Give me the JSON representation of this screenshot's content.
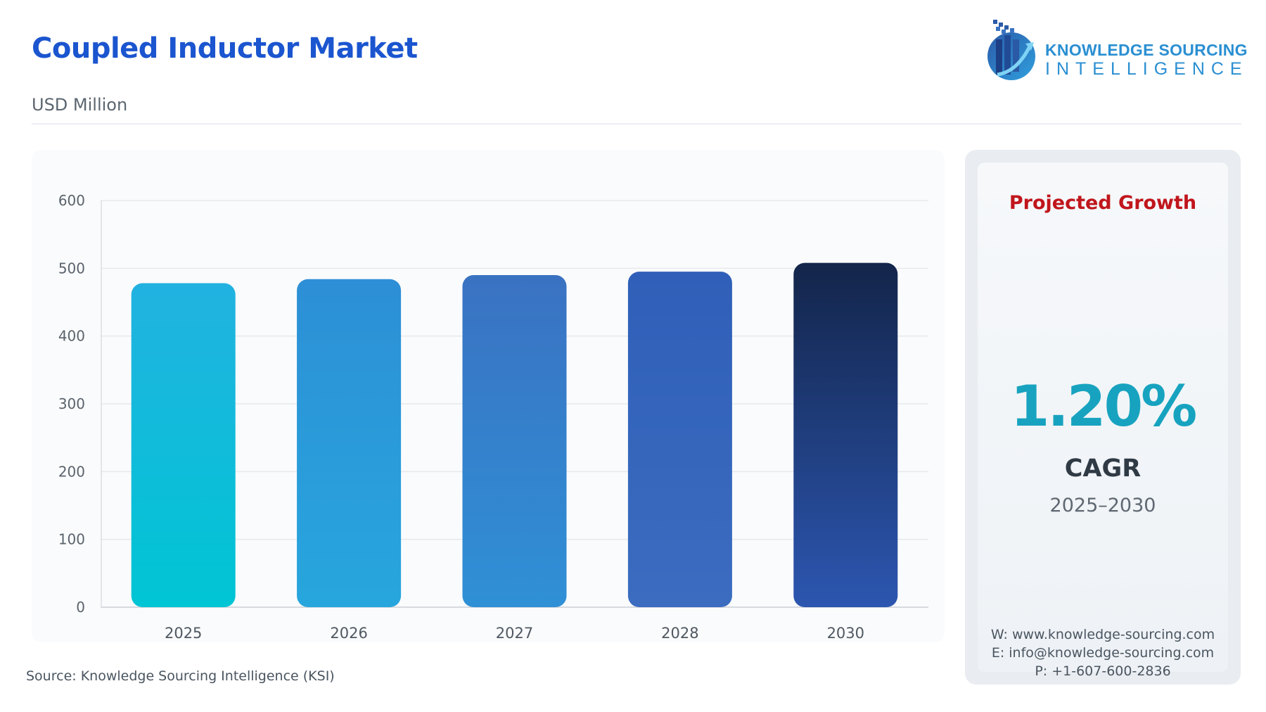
{
  "header": {
    "title": "Coupled Inductor Market",
    "subtitle": "USD Million"
  },
  "logo": {
    "line1": "KNOWLEDGE SOURCING",
    "line2": "INTELLIGENCE",
    "icon": "bar-chart-globe-logo-icon"
  },
  "chart_data": {
    "type": "bar",
    "categories": [
      "2025",
      "2026",
      "2027",
      "2028",
      "2030"
    ],
    "values": [
      478,
      484,
      490,
      495,
      508
    ],
    "ylim": [
      0,
      600
    ],
    "yticks": [
      0,
      100,
      200,
      300,
      400,
      500,
      600
    ],
    "grid": true,
    "legend": "none",
    "title": "",
    "xlabel": "",
    "ylabel": "",
    "colors": {
      "2025": [
        "#00c5d4",
        "#21b2e0"
      ],
      "2026": [
        "#27a6dd",
        "#2d8fd6"
      ],
      "2027": [
        "#2f90d6",
        "#3a72c2"
      ],
      "2028": [
        "#3b6cc0",
        "#2f5fb8"
      ],
      "2030": [
        "#2c56b0",
        "#13254a"
      ]
    }
  },
  "source": "Source: Knowledge Sourcing Intelligence (KSI)",
  "growth": {
    "title": "Projected Growth",
    "value": "1.20%",
    "label": "CAGR",
    "period": "2025–2030"
  },
  "contact": {
    "web": "W: www.knowledge-sourcing.com",
    "email": "E: info@knowledge-sourcing.com",
    "phone": "P: +1-607-600-2836"
  },
  "accent_colors": {
    "title": "#1b55cf",
    "growth_title": "#c0161c",
    "cagr": "#17a3bf"
  }
}
